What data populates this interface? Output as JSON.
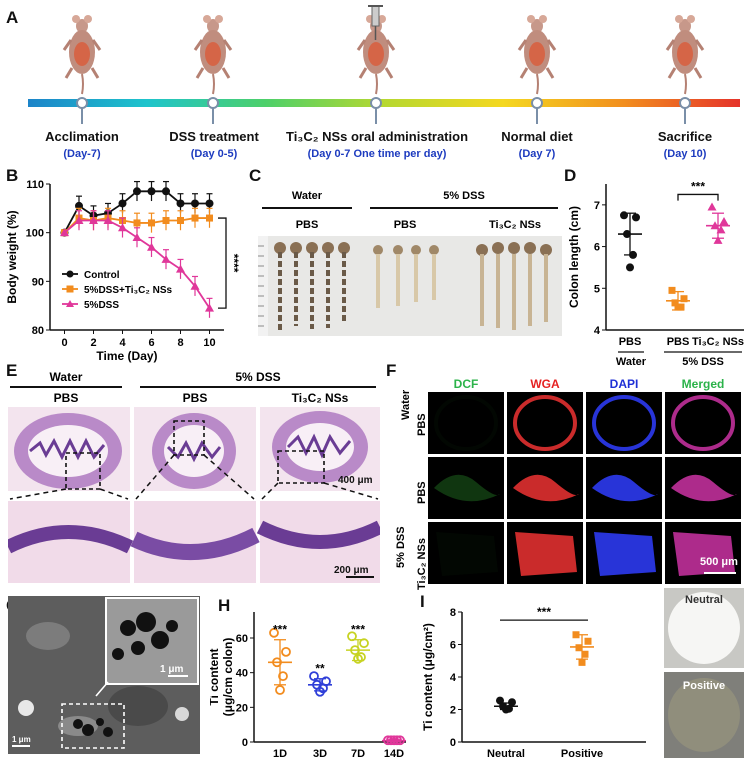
{
  "panels": {
    "A": "A",
    "B": "B",
    "C": "C",
    "D": "D",
    "E": "E",
    "F": "F",
    "G": "G",
    "H": "H",
    "I": "I"
  },
  "timeline": {
    "steps": [
      {
        "label": "Acclimation",
        "sub": "(Day-7)"
      },
      {
        "label": "DSS treatment",
        "sub": "(Day 0-5)"
      },
      {
        "label": "Ti₃C₂ NSs oral administration",
        "sub": "(Day 0-7 One time per day)"
      },
      {
        "label": "Normal diet",
        "sub": "(Day 7)"
      },
      {
        "label": "Sacrifice",
        "sub": "(Day 10)"
      }
    ]
  },
  "panelC": {
    "water": "Water",
    "dss": "5% DSS",
    "pbs1": "PBS",
    "pbs2": "PBS",
    "ti": "Ti₃C₂ NSs"
  },
  "panelE": {
    "water": "Water",
    "dss": "5% DSS",
    "pbs1": "PBS",
    "pbs2": "PBS",
    "ti": "Ti₃C₂ NSs",
    "scale1": "400 μm",
    "scale2": "200 μm"
  },
  "panelF": {
    "cols": [
      "DCF",
      "WGA",
      "DAPI",
      "Merged"
    ],
    "colColors": [
      "#2bb34a",
      "#e52222",
      "#1e2fd6",
      "#2bb34a"
    ],
    "rowWater": "Water",
    "rowDss": "5% DSS",
    "rowPbs1": "PBS",
    "rowPbs2": "PBS",
    "rowTi": "Ti₃C₂ NSs",
    "scale": "500 μm"
  },
  "panelG": {
    "scaleInset": "1 μm",
    "scaleMain": "1 μm"
  },
  "panelI_photos": {
    "neutral": "Neutral",
    "positive": "Positive"
  },
  "chart_data": [
    {
      "id": "B",
      "type": "line",
      "xlabel": "Time (Day)",
      "ylabel": "Body weight (%)",
      "xlim": [
        -1,
        11
      ],
      "ylim": [
        80,
        110
      ],
      "xticks": [
        0,
        2,
        4,
        6,
        8,
        10
      ],
      "yticks": [
        80,
        90,
        100,
        110
      ],
      "x": [
        0,
        1,
        2,
        3,
        4,
        5,
        6,
        7,
        8,
        9,
        10
      ],
      "series": [
        {
          "name": "Control",
          "color": "#111111",
          "values": [
            100,
            105.5,
            103.5,
            104,
            106,
            108.5,
            108.5,
            108.5,
            106,
            106,
            106
          ]
        },
        {
          "name": "5%DSS+Ti₃C₂ NSs",
          "color": "#f28c1e",
          "values": [
            100,
            103,
            102.5,
            103,
            102.5,
            102,
            102,
            102.5,
            102.5,
            103,
            103
          ]
        },
        {
          "name": "5%DSS",
          "color": "#e0379a",
          "values": [
            100,
            102.5,
            102.5,
            102.5,
            101,
            99,
            97,
            94.5,
            92.5,
            89,
            84.5
          ]
        }
      ],
      "significance": "****",
      "legend": "bottom-left"
    },
    {
      "id": "D",
      "type": "scatter",
      "ylabel": "Colon length (cm)",
      "ylim": [
        4,
        7.5
      ],
      "yticks": [
        4,
        5,
        6,
        7
      ],
      "categories": [
        "PBS",
        "PBS",
        "Ti₃C₂ NSs"
      ],
      "groups": [
        "Water",
        "5% DSS"
      ],
      "series": [
        {
          "color": "#111111",
          "mean": 6.3,
          "sd": 0.5,
          "points": [
            6.75,
            6.7,
            6.3,
            5.8,
            5.5
          ]
        },
        {
          "color": "#f28c1e",
          "mean": 4.7,
          "sd": 0.22,
          "points": [
            4.95,
            4.75,
            4.65,
            4.55,
            4.55
          ]
        },
        {
          "color": "#e0379a",
          "mean": 6.5,
          "sd": 0.3,
          "points": [
            6.95,
            6.6,
            6.5,
            6.4,
            6.15
          ]
        }
      ],
      "significance": "***"
    },
    {
      "id": "H",
      "type": "scatter",
      "ylabel": "Ti content (μg/cm colon)",
      "ylim": [
        0,
        75
      ],
      "yticks": [
        0,
        20,
        40,
        60
      ],
      "categories": [
        "1D",
        "3D",
        "7D",
        "14D"
      ],
      "series": [
        {
          "color": "#f28c1e",
          "mean": 46,
          "sd": 13,
          "points": [
            63,
            52,
            46,
            38,
            30
          ],
          "significance": "***"
        },
        {
          "color": "#2f3fd8",
          "mean": 33,
          "sd": 3.5,
          "points": [
            38,
            35,
            33,
            31,
            29
          ],
          "significance": "**"
        },
        {
          "color": "#c7d322",
          "mean": 53,
          "sd": 6,
          "points": [
            61,
            57,
            53,
            49,
            48
          ],
          "significance": "***"
        },
        {
          "color": "#e0379a",
          "mean": 0.8,
          "sd": 0.5,
          "points": [
            1,
            1,
            1,
            1,
            1
          ],
          "significance": ""
        }
      ]
    },
    {
      "id": "I",
      "type": "scatter",
      "ylabel": "Ti content (μg/cm²)",
      "ylim": [
        0,
        8
      ],
      "yticks": [
        0,
        2,
        4,
        6,
        8
      ],
      "categories": [
        "Neutral",
        "Positive"
      ],
      "series": [
        {
          "color": "#111111",
          "mean": 2.2,
          "sd": 0.2,
          "points": [
            2.55,
            2.45,
            2.2,
            2.05,
            2.0
          ]
        },
        {
          "color": "#f28c1e",
          "mean": 5.85,
          "sd": 0.75,
          "points": [
            6.6,
            6.2,
            5.8,
            5.4,
            4.9
          ]
        }
      ],
      "significance": "***"
    }
  ]
}
